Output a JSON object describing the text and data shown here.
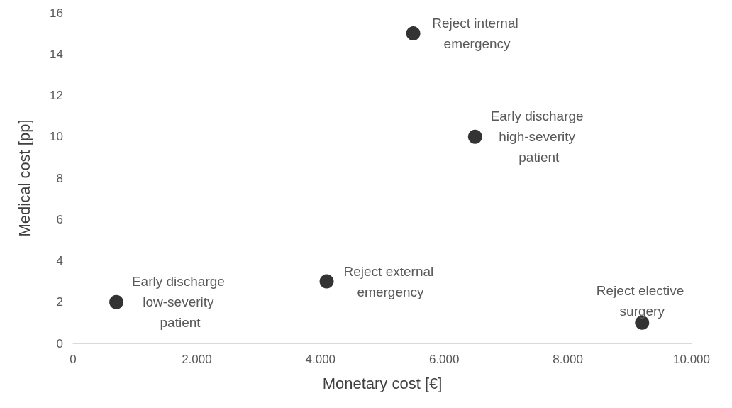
{
  "chart_data": {
    "type": "scatter",
    "xlabel": "Monetary cost [€]",
    "ylabel": "Medical cost [pp]",
    "x": [
      700,
      4100,
      5500,
      6500,
      9200
    ],
    "values": [
      2,
      3,
      15,
      10,
      1
    ],
    "color": "#000000",
    "marker": "circle",
    "xlim": [
      0,
      10000
    ],
    "xticks": [
      0,
      {
        "value": 2000,
        "label": "2.000"
      },
      {
        "value": 4000,
        "label": "4.000"
      },
      {
        "value": 6000,
        "label": "6.000"
      },
      {
        "value": 8000,
        "label": "8.000"
      },
      {
        "value": 10000,
        "label": "10.000"
      }
    ],
    "ylim": [
      0,
      16
    ],
    "yticks": [
      0,
      2,
      4,
      6,
      8,
      10,
      12,
      14,
      16
    ],
    "annotations": [
      {
        "text": "Early discharge low-severity patient",
        "x": 700,
        "y": 2
      },
      {
        "text": "Reject external emergency",
        "x": 4100,
        "y": 3
      },
      {
        "text": "Reject internal emergency",
        "x": 5500,
        "y": 15
      },
      {
        "text": "Early discharge high-severity patient",
        "x": 6500,
        "y": 10
      },
      {
        "text": "Reject elective surgery",
        "x": 9200,
        "y": 1
      }
    ]
  }
}
